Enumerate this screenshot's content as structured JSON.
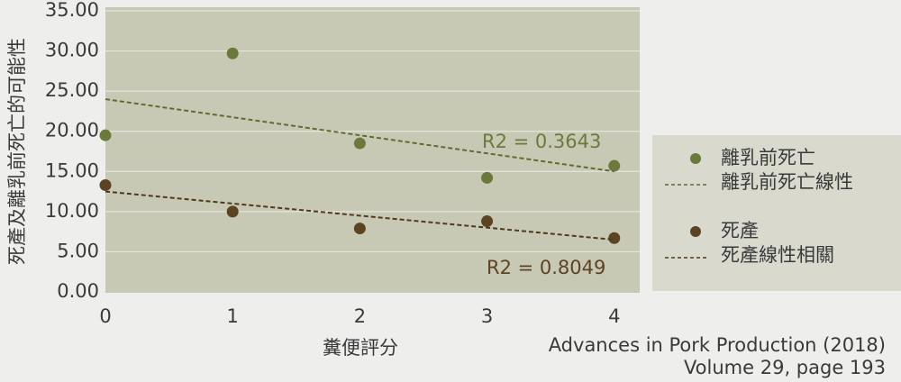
{
  "chart_data": {
    "type": "scatter",
    "y_label": "死產及離乳前死亡的可能性",
    "x_label": "糞便評分",
    "xlim": [
      0,
      4.2
    ],
    "xticks": [
      0,
      1,
      2,
      3,
      4
    ],
    "ylim": [
      0,
      35
    ],
    "yticks": [
      {
        "value": 0,
        "label": "0.00"
      },
      {
        "value": 5,
        "label": "5.00"
      },
      {
        "value": 10,
        "label": "10.00"
      },
      {
        "value": 15,
        "label": "15.00"
      },
      {
        "value": 20,
        "label": "20.00"
      },
      {
        "value": 25,
        "label": "25.00"
      },
      {
        "value": 30,
        "label": "30.00"
      },
      {
        "value": 35,
        "label": "35.00"
      }
    ],
    "grid": true,
    "series": [
      {
        "name": "離乳前死亡",
        "kind": "points",
        "color": "#6b7a3c",
        "x": [
          0,
          1,
          2,
          3,
          4
        ],
        "values": [
          19.5,
          29.7,
          18.5,
          14.2,
          15.7
        ]
      },
      {
        "name": "離乳前死亡線性",
        "kind": "trend",
        "color": "#5f6b2e",
        "x": [
          0,
          4
        ],
        "values": [
          24.0,
          15.0
        ]
      },
      {
        "name": "死產",
        "kind": "points",
        "color": "#5c4322",
        "x": [
          0,
          1,
          2,
          3,
          4
        ],
        "values": [
          13.3,
          10.0,
          7.9,
          8.8,
          6.7
        ]
      },
      {
        "name": "死產線性相關",
        "kind": "trend",
        "color": "#4e3a1c",
        "x": [
          0,
          4
        ],
        "values": [
          12.5,
          6.5
        ]
      }
    ],
    "annotations": [
      {
        "text": "R2 = 0.3643",
        "color": "#6b7a3c"
      },
      {
        "text": "R2 = 0.8049",
        "color": "#5c4322"
      }
    ],
    "source": [
      "Advances in Pork Production (2018)",
      "Volume 29, page 193"
    ]
  }
}
